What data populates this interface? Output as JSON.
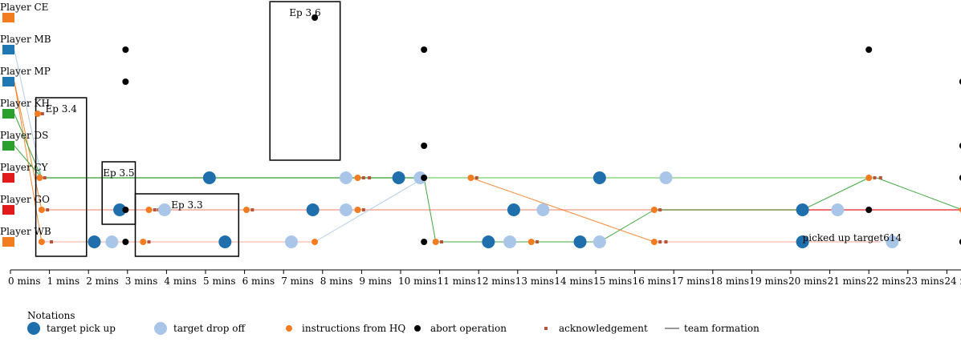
{
  "chart_data": {
    "type": "scatter",
    "title": "",
    "xlabel": "",
    "ylabel": "",
    "x_unit": "mins",
    "xlim": [
      0,
      24.5
    ],
    "x_ticks": [
      {
        "value": 0,
        "label": "0 mins"
      },
      {
        "value": 1,
        "label": "1 mins"
      },
      {
        "value": 2,
        "label": "2 mins"
      },
      {
        "value": 3,
        "label": "3 mins"
      },
      {
        "value": 4,
        "label": "4 mins"
      },
      {
        "value": 5,
        "label": "5 mins"
      },
      {
        "value": 6,
        "label": "6 mins"
      },
      {
        "value": 7,
        "label": "7 mins"
      },
      {
        "value": 8,
        "label": "8 mins"
      },
      {
        "value": 9,
        "label": "9 mins"
      },
      {
        "value": 10,
        "label": "10 mins"
      },
      {
        "value": 11,
        "label": "11 mins"
      },
      {
        "value": 12,
        "label": "12 mins"
      },
      {
        "value": 13,
        "label": "13 mins"
      },
      {
        "value": 14,
        "label": "14 mins"
      },
      {
        "value": 15,
        "label": "15 mins"
      },
      {
        "value": 16,
        "label": "16 mins"
      },
      {
        "value": 17,
        "label": "17 mins"
      },
      {
        "value": 18,
        "label": "18 mins"
      },
      {
        "value": 19,
        "label": "19 mins"
      },
      {
        "value": 20,
        "label": "20 mins"
      },
      {
        "value": 21,
        "label": "21 mins"
      },
      {
        "value": 22,
        "label": "22 mins"
      },
      {
        "value": 23,
        "label": "23 mins"
      },
      {
        "value": 24,
        "label": "24 mins"
      }
    ],
    "players": [
      {
        "name": "Player CE",
        "color": "#f47c20"
      },
      {
        "name": "Player MB",
        "color": "#1f78b4"
      },
      {
        "name": "Player MP",
        "color": "#1f78b4"
      },
      {
        "name": "Player KH",
        "color": "#2ca02c"
      },
      {
        "name": "Player DS",
        "color": "#2ca02c"
      },
      {
        "name": "Player CY",
        "color": "#e31a1c"
      },
      {
        "name": "Player GO",
        "color": "#e31a1c"
      },
      {
        "name": "Player WB",
        "color": "#f47c20"
      }
    ],
    "colors": {
      "pickup": "#1f6fad",
      "dropoff": "#a9c6e8",
      "instruction": "#f47c20",
      "abort": "#000000",
      "ack": "#b5553a",
      "timeline_green": "#2ca02c",
      "timeline_red": "#e31a1c",
      "timeline_peach": "#f9b9a6",
      "timeline_lightgreen": "#98df8a",
      "timeline_blue": "#a9c6e8"
    },
    "timelines": [
      {
        "player": "Player CY",
        "x": [
          0.8,
          22.2
        ],
        "color": "timeline_green"
      },
      {
        "player": "Player CY",
        "x": [
          10.6,
          22.2
        ],
        "color": "timeline_lightgreen"
      },
      {
        "player": "Player GO",
        "x": [
          0.8,
          24.4
        ],
        "color": "timeline_red"
      },
      {
        "player": "Player GO",
        "x": [
          0.8,
          16.5
        ],
        "color": "timeline_peach"
      },
      {
        "player": "Player WB",
        "x": [
          0.8,
          7.8
        ],
        "color": "timeline_peach"
      },
      {
        "player": "Player WB",
        "x": [
          16.5,
          22.3
        ],
        "color": "timeline_peach"
      }
    ],
    "links": [
      {
        "from": [
          "Player MB",
          0.1
        ],
        "to": [
          "Player CY",
          0.8
        ],
        "color": "timeline_blue"
      },
      {
        "from": [
          "Player MP",
          0.1
        ],
        "to": [
          "Player WB",
          0.8
        ],
        "color": "instruction"
      },
      {
        "from": [
          "Player MP",
          0.1
        ],
        "to": [
          "Player GO",
          0.8
        ],
        "color": "instruction"
      },
      {
        "from": [
          "Player KH",
          0.1
        ],
        "to": [
          "Player CY",
          0.8
        ],
        "color": "timeline_green"
      },
      {
        "from": [
          "Player DS",
          0.1
        ],
        "to": [
          "Player CY",
          0.8
        ],
        "color": "timeline_green"
      },
      {
        "from": [
          "Player WB",
          7.8
        ],
        "to": [
          "Player CY",
          10.6
        ],
        "color": "timeline_blue"
      },
      {
        "from": [
          "Player CY",
          10.6
        ],
        "to": [
          "Player WB",
          10.9
        ],
        "color": "timeline_green"
      },
      {
        "from": [
          "Player WB",
          10.9
        ],
        "to": [
          "Player WB",
          15.1
        ],
        "color": "timeline_green"
      },
      {
        "from": [
          "Player WB",
          15.1
        ],
        "to": [
          "Player GO",
          16.5
        ],
        "color": "timeline_green"
      },
      {
        "from": [
          "Player GO",
          16.5
        ],
        "to": [
          "Player GO",
          20.3
        ],
        "color": "timeline_green"
      },
      {
        "from": [
          "Player GO",
          20.3
        ],
        "to": [
          "Player CY",
          22.0
        ],
        "color": "timeline_green"
      },
      {
        "from": [
          "Player CY",
          22.2
        ],
        "to": [
          "Player GO",
          24.4
        ],
        "color": "timeline_green"
      },
      {
        "from": [
          "Player CY",
          11.8
        ],
        "to": [
          "Player WB",
          16.5
        ],
        "color": "instruction"
      }
    ],
    "events": [
      {
        "player": "Player MB",
        "x": 2.95,
        "type": "abort"
      },
      {
        "player": "Player MB",
        "x": 10.6,
        "type": "abort"
      },
      {
        "player": "Player MB",
        "x": 22.0,
        "type": "abort"
      },
      {
        "player": "Player MP",
        "x": 2.95,
        "type": "abort"
      },
      {
        "player": "Player MP",
        "x": 24.4,
        "type": "abort"
      },
      {
        "player": "Player KH",
        "x": 0.7,
        "type": "instruction"
      },
      {
        "player": "Player KH",
        "x": 0.82,
        "type": "ack"
      },
      {
        "player": "Player DS",
        "x": 10.6,
        "type": "abort"
      },
      {
        "player": "Player DS",
        "x": 24.4,
        "type": "abort"
      },
      {
        "player": "Player CY",
        "x": 0.75,
        "type": "instruction"
      },
      {
        "player": "Player CY",
        "x": 0.88,
        "type": "ack"
      },
      {
        "player": "Player CY",
        "x": 5.1,
        "type": "pickup"
      },
      {
        "player": "Player CY",
        "x": 8.6,
        "type": "dropoff"
      },
      {
        "player": "Player CY",
        "x": 8.9,
        "type": "instruction"
      },
      {
        "player": "Player CY",
        "x": 9.05,
        "type": "ack"
      },
      {
        "player": "Player CY",
        "x": 9.2,
        "type": "ack"
      },
      {
        "player": "Player CY",
        "x": 9.95,
        "type": "pickup"
      },
      {
        "player": "Player CY",
        "x": 10.5,
        "type": "dropoff"
      },
      {
        "player": "Player CY",
        "x": 10.6,
        "type": "abort"
      },
      {
        "player": "Player CY",
        "x": 11.8,
        "type": "instruction"
      },
      {
        "player": "Player CY",
        "x": 11.95,
        "type": "ack"
      },
      {
        "player": "Player CY",
        "x": 15.1,
        "type": "pickup"
      },
      {
        "player": "Player CY",
        "x": 16.8,
        "type": "dropoff"
      },
      {
        "player": "Player CY",
        "x": 22.0,
        "type": "instruction"
      },
      {
        "player": "Player CY",
        "x": 22.15,
        "type": "ack"
      },
      {
        "player": "Player CY",
        "x": 22.3,
        "type": "ack"
      },
      {
        "player": "Player CY",
        "x": 24.4,
        "type": "abort"
      },
      {
        "player": "Player GO",
        "x": 0.8,
        "type": "instruction"
      },
      {
        "player": "Player GO",
        "x": 0.95,
        "type": "ack"
      },
      {
        "player": "Player GO",
        "x": 2.8,
        "type": "pickup"
      },
      {
        "player": "Player GO",
        "x": 2.95,
        "type": "abort"
      },
      {
        "player": "Player GO",
        "x": 3.55,
        "type": "instruction"
      },
      {
        "player": "Player GO",
        "x": 3.7,
        "type": "ack"
      },
      {
        "player": "Player GO",
        "x": 3.8,
        "type": "ack"
      },
      {
        "player": "Player GO",
        "x": 3.95,
        "type": "dropoff"
      },
      {
        "player": "Player GO",
        "x": 6.05,
        "type": "instruction"
      },
      {
        "player": "Player GO",
        "x": 6.2,
        "type": "ack"
      },
      {
        "player": "Player GO",
        "x": 7.75,
        "type": "pickup"
      },
      {
        "player": "Player GO",
        "x": 8.6,
        "type": "dropoff"
      },
      {
        "player": "Player GO",
        "x": 8.9,
        "type": "instruction"
      },
      {
        "player": "Player GO",
        "x": 9.05,
        "type": "ack"
      },
      {
        "player": "Player GO",
        "x": 12.9,
        "type": "pickup"
      },
      {
        "player": "Player GO",
        "x": 13.65,
        "type": "dropoff"
      },
      {
        "player": "Player GO",
        "x": 16.5,
        "type": "instruction"
      },
      {
        "player": "Player GO",
        "x": 16.65,
        "type": "ack"
      },
      {
        "player": "Player GO",
        "x": 20.3,
        "type": "pickup"
      },
      {
        "player": "Player GO",
        "x": 21.2,
        "type": "dropoff"
      },
      {
        "player": "Player GO",
        "x": 22.0,
        "type": "abort"
      },
      {
        "player": "Player GO",
        "x": 24.4,
        "type": "instruction"
      },
      {
        "player": "Player WB",
        "x": 0.8,
        "type": "instruction"
      },
      {
        "player": "Player WB",
        "x": 1.05,
        "type": "ack"
      },
      {
        "player": "Player WB",
        "x": 2.15,
        "type": "pickup"
      },
      {
        "player": "Player WB",
        "x": 2.6,
        "type": "dropoff"
      },
      {
        "player": "Player WB",
        "x": 2.95,
        "type": "abort"
      },
      {
        "player": "Player WB",
        "x": 3.4,
        "type": "instruction"
      },
      {
        "player": "Player WB",
        "x": 3.55,
        "type": "ack"
      },
      {
        "player": "Player WB",
        "x": 5.5,
        "type": "pickup"
      },
      {
        "player": "Player WB",
        "x": 7.2,
        "type": "dropoff"
      },
      {
        "player": "Player WB",
        "x": 7.8,
        "type": "instruction"
      },
      {
        "player": "Player WB",
        "x": 10.6,
        "type": "abort"
      },
      {
        "player": "Player WB",
        "x": 10.9,
        "type": "instruction"
      },
      {
        "player": "Player WB",
        "x": 11.05,
        "type": "ack"
      },
      {
        "player": "Player WB",
        "x": 12.25,
        "type": "pickup"
      },
      {
        "player": "Player WB",
        "x": 12.8,
        "type": "dropoff"
      },
      {
        "player": "Player WB",
        "x": 13.35,
        "type": "instruction"
      },
      {
        "player": "Player WB",
        "x": 13.5,
        "type": "ack"
      },
      {
        "player": "Player WB",
        "x": 14.6,
        "type": "pickup"
      },
      {
        "player": "Player WB",
        "x": 15.1,
        "type": "dropoff"
      },
      {
        "player": "Player WB",
        "x": 16.5,
        "type": "instruction"
      },
      {
        "player": "Player WB",
        "x": 16.65,
        "type": "ack"
      },
      {
        "player": "Player WB",
        "x": 16.8,
        "type": "ack"
      },
      {
        "player": "Player WB",
        "x": 20.3,
        "type": "pickup"
      },
      {
        "player": "Player WB",
        "x": 22.6,
        "type": "dropoff"
      },
      {
        "player": "Player WB",
        "x": 24.4,
        "type": "abort"
      },
      {
        "player": "Player CE",
        "x": 7.8,
        "type": "abort"
      }
    ],
    "episodes": [
      {
        "label": "Ep 3.4",
        "x": [
          0.65,
          1.95
        ],
        "rows": [
          "Player KH",
          "Player WB"
        ]
      },
      {
        "label": "Ep 3.5",
        "x": [
          2.35,
          3.2
        ],
        "rows": [
          "Player CY",
          "Player GO"
        ]
      },
      {
        "label": "Ep 3.3",
        "x": [
          3.2,
          5.85
        ],
        "rows": [
          "Player GO",
          "Player WB"
        ]
      },
      {
        "label": "Ep 3.6",
        "x": [
          6.65,
          8.45
        ],
        "rows": [
          "Player CE",
          "Player DS"
        ]
      }
    ],
    "annotations": [
      {
        "text": "picked up target614",
        "player": "Player WB",
        "x": 20.3
      }
    ],
    "legend": {
      "title": "Notations",
      "placement": "bottom-left",
      "items": [
        {
          "type": "pickup",
          "label": "target pick up"
        },
        {
          "type": "dropoff",
          "label": "target drop off"
        },
        {
          "type": "instruction",
          "label": "instructions from HQ"
        },
        {
          "type": "abort",
          "label": "abort operation"
        },
        {
          "type": "ack",
          "label": "acknowledgement"
        },
        {
          "type": "formation",
          "label": "team formation"
        }
      ]
    }
  }
}
